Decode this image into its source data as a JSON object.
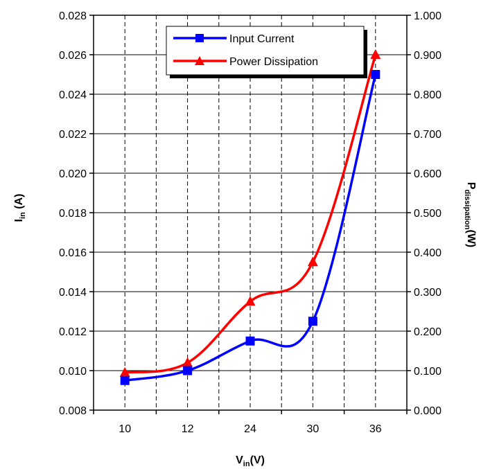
{
  "chart_data": {
    "type": "line",
    "categories": [
      "10",
      "12",
      "24",
      "30",
      "36"
    ],
    "series": [
      {
        "name": "Input Current",
        "axis": "left",
        "color": "#0000ff",
        "marker": "square",
        "values": [
          0.0095,
          0.01,
          0.0115,
          0.0125,
          0.025
        ]
      },
      {
        "name": "Power Dissipation",
        "axis": "right",
        "color": "#ff0000",
        "marker": "triangle",
        "values": [
          0.095,
          0.12,
          0.275,
          0.375,
          0.9
        ]
      }
    ],
    "x_axis": {
      "label_main": "V",
      "label_sub": "in",
      "label_unit": "(V)"
    },
    "y_left": {
      "label_main": "I",
      "label_sub": "in",
      "label_unit": " (A)",
      "ylim": [
        0.008,
        0.028
      ],
      "ticks": [
        "0.008",
        "0.010",
        "0.012",
        "0.014",
        "0.016",
        "0.018",
        "0.020",
        "0.022",
        "0.024",
        "0.026",
        "0.028"
      ]
    },
    "y_right": {
      "label_main": "P",
      "label_sub": "dissipation",
      "label_unit": "(W)",
      "ylim": [
        0,
        1
      ],
      "ticks": [
        "0.000",
        "0.100",
        "0.200",
        "0.300",
        "0.400",
        "0.500",
        "0.600",
        "0.700",
        "0.800",
        "0.900",
        "1.000"
      ]
    },
    "grid": true,
    "legend": "top-right"
  }
}
